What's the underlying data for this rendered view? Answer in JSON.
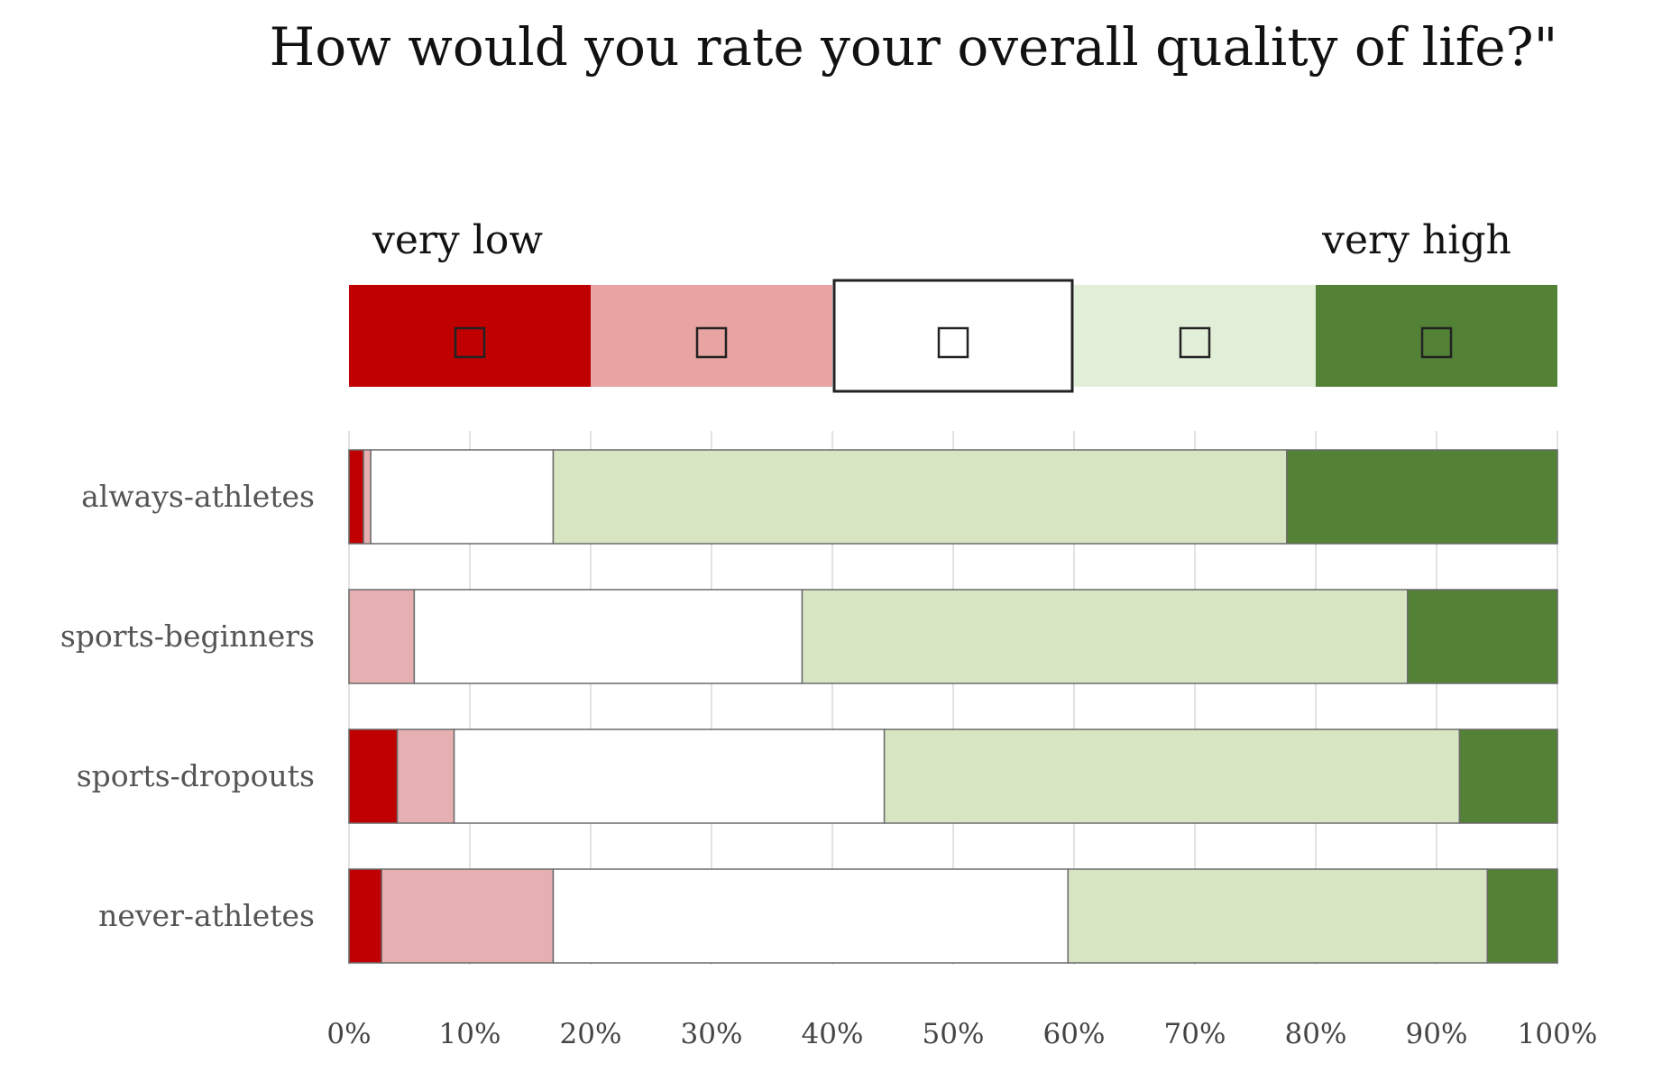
{
  "chart_data": {
    "type": "bar",
    "orientation": "horizontal",
    "stacked": true,
    "normalized_percent": true,
    "title": "How would you rate your overall quality of life?\"",
    "legend": {
      "placement": "top",
      "left_label": "very low",
      "right_label": "very high",
      "levels": [
        {
          "key": "very_low",
          "color": "#c00000"
        },
        {
          "key": "low",
          "color": "#e8a3a3"
        },
        {
          "key": "neutral",
          "color": "#ffffff"
        },
        {
          "key": "high",
          "color": "#e2efd8"
        },
        {
          "key": "very_high",
          "color": "#538135"
        }
      ]
    },
    "categories": [
      "always-athletes",
      "sports-beginners",
      "sports-dropouts",
      "never-athletes"
    ],
    "series": [
      {
        "key": "very_low",
        "color": "#c00000",
        "values": [
          1.2,
          0.0,
          4.0,
          2.7
        ]
      },
      {
        "key": "low",
        "color": "#e6b0b2",
        "values": [
          0.6,
          5.4,
          4.7,
          14.2
        ]
      },
      {
        "key": "neutral",
        "color": "#ffffff",
        "values": [
          15.1,
          32.1,
          35.6,
          42.6
        ]
      },
      {
        "key": "high",
        "color": "#d8e5c3",
        "values": [
          60.7,
          50.1,
          47.6,
          34.7
        ]
      },
      {
        "key": "very_high",
        "color": "#538135",
        "values": [
          22.4,
          12.4,
          8.1,
          5.8
        ]
      }
    ],
    "xlim": [
      0,
      100
    ],
    "xticks": [
      "0%",
      "10%",
      "20%",
      "30%",
      "40%",
      "50%",
      "60%",
      "70%",
      "80%",
      "90%",
      "100%"
    ],
    "grid": "vertical"
  }
}
